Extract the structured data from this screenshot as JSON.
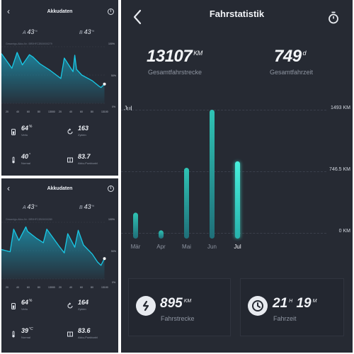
{
  "left_screens": [
    {
      "title": "Akkudaten",
      "cell_a": {
        "letter": "A",
        "value": "43",
        "unit": "%"
      },
      "cell_b": {
        "letter": "B",
        "value": "43",
        "unit": "%"
      },
      "serial": "Gesamtgs-Akku-Nr.: BR0HFC2B0IX00279",
      "pct_labels": [
        "100%",
        "50%",
        "0%"
      ],
      "x_ticks": [
        "20",
        "40",
        "60",
        "80",
        "13000",
        "20",
        "40",
        "60",
        "80",
        "13100"
      ],
      "stats": [
        {
          "icon": "battery-icon",
          "value": "64",
          "unit": "%",
          "label": "Verlu"
        },
        {
          "icon": "cycle-icon",
          "value": "163",
          "unit": "",
          "label": "Zyklen"
        },
        {
          "icon": "thermometer-icon",
          "value": "40",
          "unit": "°",
          "label": "Normal"
        },
        {
          "icon": "grid-icon",
          "value": "83.7",
          "unit": "",
          "label": "Akku-Punktzahl"
        }
      ],
      "chart_data": {
        "type": "line",
        "y_range_percent": [
          0,
          100
        ],
        "x_range": [
          12990,
          13110
        ],
        "x": [
          12990,
          13002,
          13008,
          13014,
          13022,
          13026,
          13034,
          13046,
          13058,
          13062,
          13072,
          13074,
          13076,
          13082,
          13094,
          13102,
          13104,
          13108
        ],
        "values": [
          88,
          62,
          90,
          68,
          86,
          82,
          70,
          58,
          44,
          80,
          56,
          85,
          60,
          50,
          40,
          30,
          28,
          34
        ]
      }
    },
    {
      "title": "Akkudaten",
      "cell_a": {
        "letter": "A",
        "value": "43",
        "unit": "%"
      },
      "cell_b": {
        "letter": "B",
        "value": "43",
        "unit": "%"
      },
      "serial": "Gesamtgs-Akku-Nr.: BR0HFC2B0IX00280",
      "pct_labels": [
        "100%",
        "50%",
        "0%"
      ],
      "x_ticks": [
        "20",
        "40",
        "60",
        "80",
        "13000",
        "20",
        "40",
        "60",
        "80",
        "13100"
      ],
      "stats": [
        {
          "icon": "battery-icon",
          "value": "64",
          "unit": "%",
          "label": "Verlu"
        },
        {
          "icon": "cycle-icon",
          "value": "164",
          "unit": "",
          "label": "Zyklen"
        },
        {
          "icon": "thermometer-icon",
          "value": "39",
          "unit": "°C",
          "label": "Normal"
        },
        {
          "icon": "grid-icon",
          "value": "83.6",
          "unit": "",
          "label": "Akku-Punktzahl"
        }
      ],
      "chart_data": {
        "type": "line",
        "y_range_percent": [
          0,
          100
        ],
        "x_range": [
          12990,
          13110
        ],
        "x": [
          12990,
          13000,
          13004,
          13010,
          13018,
          13020,
          13030,
          13038,
          13042,
          13056,
          13062,
          13066,
          13074,
          13078,
          13084,
          13094,
          13100,
          13104,
          13108
        ],
        "values": [
          52,
          48,
          88,
          68,
          92,
          84,
          72,
          64,
          88,
          58,
          46,
          80,
          56,
          86,
          60,
          44,
          30,
          24,
          36
        ]
      }
    }
  ],
  "right": {
    "title": "Fahrstatistik",
    "total_distance": {
      "value": "13107",
      "unit": "KM",
      "label": "Gesamtfahrstrecke"
    },
    "total_time": {
      "value": "749",
      "unit": "d",
      "label": "Gesamtfahrzeit"
    },
    "selected_month": "Jul",
    "y_labels": {
      "top": "1493 KM",
      "mid": "746.5 KM",
      "bottom": "0 KM"
    },
    "chart_data": {
      "type": "bar",
      "categories": [
        "Mär",
        "Apr",
        "Mai",
        "Jun",
        "Jul"
      ],
      "values": [
        300,
        95,
        820,
        1493,
        895
      ],
      "ylim": [
        0,
        1493
      ],
      "y_ticks": [
        0,
        746.5,
        1493
      ],
      "unit": "KM",
      "selected": "Jul"
    },
    "month_distance": {
      "value": "895",
      "unit": "KM",
      "label": "Fahrstrecke"
    },
    "month_time": {
      "hours": "21",
      "h_unit": "H",
      "minutes": "19",
      "m_unit": "M",
      "label": "Fahrzeit"
    },
    "colors": {
      "bar": "#2bb3a6",
      "bar_selected": "#3fe6d2",
      "line": "#19c9e6",
      "background": "#262a33"
    }
  }
}
